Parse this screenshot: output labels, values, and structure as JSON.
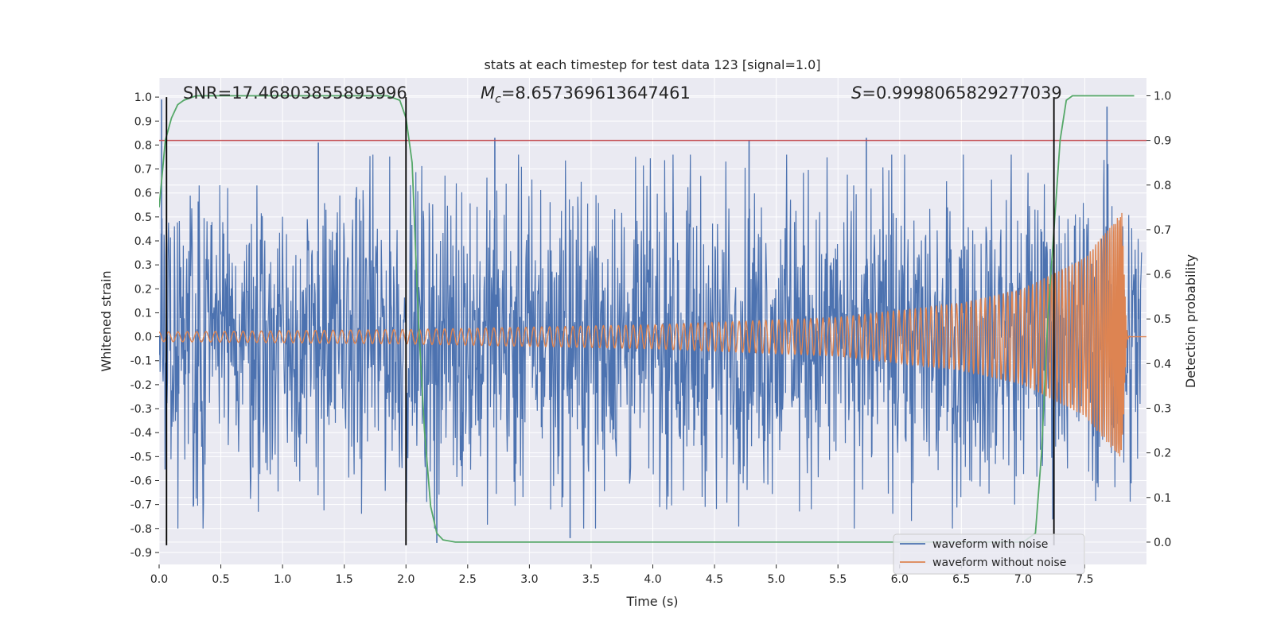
{
  "chart_data": {
    "type": "line",
    "title": "stats at each timestep for test data 123 [signal=1.0]",
    "xlabel": "Time (s)",
    "ylabel": "Whitened strain",
    "y2label": "Detection probability",
    "xlim": [
      0.0,
      8.0
    ],
    "ylim": [
      -0.95,
      1.08
    ],
    "y2lim": [
      -0.05,
      1.04
    ],
    "xticks": [
      "0.0",
      "0.5",
      "1.0",
      "1.5",
      "2.0",
      "2.5",
      "3.0",
      "3.5",
      "4.0",
      "4.5",
      "5.0",
      "5.5",
      "6.0",
      "6.5",
      "7.0",
      "7.5"
    ],
    "yticks": [
      "1.0",
      "0.9",
      "0.8",
      "0.7",
      "0.6",
      "0.5",
      "0.4",
      "0.3",
      "0.2",
      "0.1",
      "0.0",
      "-0.1",
      "-0.2",
      "-0.3",
      "-0.4",
      "-0.5",
      "-0.6",
      "-0.7",
      "-0.8",
      "-0.9"
    ],
    "y2ticks": [
      "1.0",
      "0.9",
      "0.8",
      "0.7",
      "0.6",
      "0.5",
      "0.4",
      "0.3",
      "0.2",
      "0.1",
      "0.0"
    ],
    "annotations": {
      "snr": "SNR=17.46803855895996",
      "mc_symbol": "M",
      "mc_sub": "c",
      "mc_value": "=8.657369613647461",
      "s_symbol": "S",
      "s_value": "=0.9998065829277039"
    },
    "legend": {
      "position": "lower right",
      "entries": [
        "waveform with noise",
        "waveform without noise"
      ]
    },
    "colors": {
      "noise": "#4c72b0",
      "clean": "#dd8452",
      "probability": "#55a868",
      "threshold": "#c44e52",
      "vlines": "#000000",
      "axes_bg": "#eaeaf2",
      "grid": "#ffffff"
    },
    "threshold_probability": 0.9,
    "vertical_lines_time": [
      0.06,
      2.0,
      7.25
    ],
    "series": [
      {
        "name": "waveform with noise",
        "description": "whitened noisy strain, dense fluctuation roughly between -0.85 and 0.99",
        "typical_range": [
          -0.5,
          0.5
        ],
        "peaks": [
          [
            0.02,
            0.99
          ],
          [
            1.29,
            0.81
          ],
          [
            2.72,
            0.83
          ],
          [
            3.33,
            -0.84
          ],
          [
            4.78,
            0.82
          ],
          [
            5.73,
            0.83
          ],
          [
            7.68,
            0.96
          ],
          [
            2.25,
            -0.86
          ]
        ]
      },
      {
        "name": "waveform without noise",
        "description": "chirp signal, amplitude growing toward merger near 7.85 s",
        "amplitude_points": [
          [
            0.0,
            0.02
          ],
          [
            2.0,
            0.03
          ],
          [
            4.0,
            0.05
          ],
          [
            5.5,
            0.08
          ],
          [
            6.5,
            0.14
          ],
          [
            7.0,
            0.2
          ],
          [
            7.5,
            0.33
          ],
          [
            7.8,
            0.52
          ],
          [
            7.84,
            0.0
          ]
        ],
        "merger_time": 7.84
      },
      {
        "name": "detection probability",
        "axis": "right",
        "x": [
          0.0,
          0.05,
          0.1,
          0.15,
          0.2,
          0.3,
          0.4,
          0.6,
          1.0,
          1.5,
          1.85,
          1.95,
          2.0,
          2.05,
          2.1,
          2.15,
          2.2,
          2.25,
          2.3,
          2.4,
          3.0,
          4.0,
          5.0,
          6.0,
          7.0,
          7.1,
          7.15,
          7.2,
          7.25,
          7.3,
          7.35,
          7.4,
          7.5,
          7.9
        ],
        "values": [
          0.75,
          0.9,
          0.95,
          0.98,
          0.99,
          1.0,
          1.0,
          1.0,
          1.0,
          1.0,
          1.0,
          0.99,
          0.95,
          0.85,
          0.5,
          0.25,
          0.08,
          0.02,
          0.005,
          0.0,
          0.0,
          0.0,
          0.0,
          0.0,
          0.0,
          0.02,
          0.2,
          0.5,
          0.7,
          0.9,
          0.99,
          1.0,
          1.0,
          1.0
        ]
      }
    ]
  }
}
